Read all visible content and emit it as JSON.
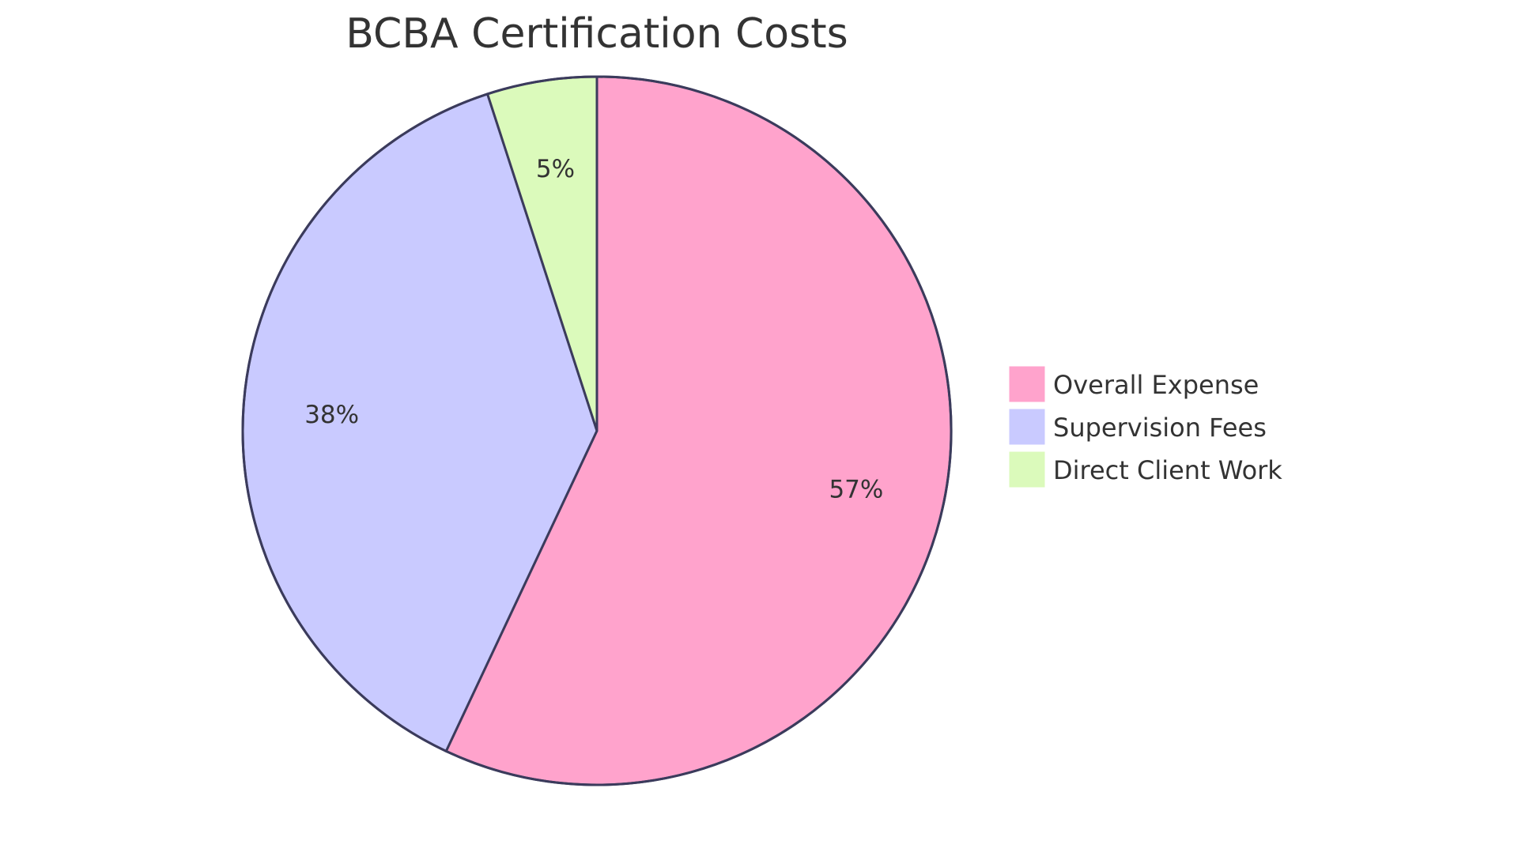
{
  "chart_data": {
    "type": "pie",
    "title": "BCBA Certification Costs",
    "start_angle_deg": 0,
    "direction": "clockwise",
    "legend_position": "right",
    "slices": [
      {
        "name": "Overall Expense",
        "value": 57,
        "label": "57%",
        "color": "#FFA3CC"
      },
      {
        "name": "Supervision Fees",
        "value": 38,
        "label": "38%",
        "color": "#C9CAFF"
      },
      {
        "name": "Direct Client Work",
        "value": 5,
        "label": "5%",
        "color": "#DBFABB"
      }
    ],
    "stroke_color": "#3b3b5c"
  }
}
